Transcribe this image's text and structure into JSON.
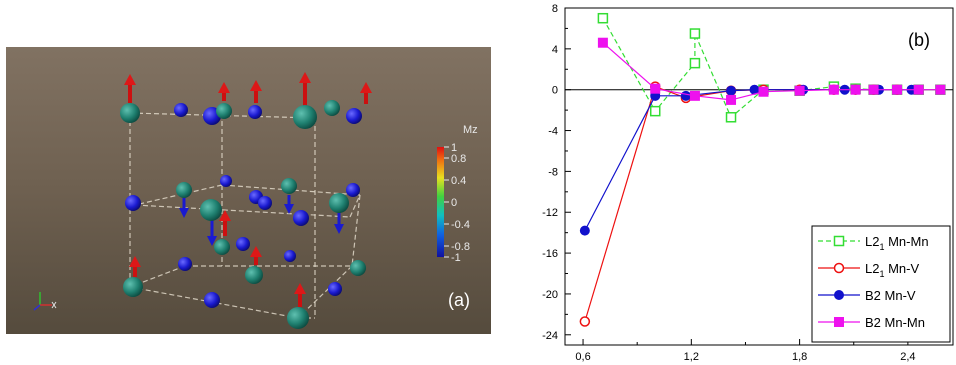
{
  "panel_a": {
    "label": "(a)",
    "colorbar": {
      "title": "Mz",
      "ticks": [
        "1",
        "0.8",
        "0.4",
        "0",
        "-0.4",
        "-0.8",
        "-1"
      ],
      "tick_values": [
        1,
        0.8,
        0.4,
        0,
        -0.4,
        -0.8,
        -1
      ]
    },
    "colors": {
      "background_top": "#7f7060",
      "background_bottom": "#5a5040",
      "mn_atom": "#1f8070",
      "v_atom": "#1a1ad0",
      "arrow_up": "#cc1010",
      "arrow_down": "#1a1ad0"
    }
  },
  "chart_data": {
    "type": "line",
    "panel_label": "(b)",
    "title": "",
    "xlabel": "",
    "ylabel": "",
    "xlim": [
      0.5,
      2.65
    ],
    "ylim": [
      -25,
      8
    ],
    "xticks": [
      0.6,
      1.2,
      1.8,
      2.4
    ],
    "xtick_labels": [
      "0,6",
      "1,2",
      "1,8",
      "2,4"
    ],
    "yticks": [
      8,
      4,
      0,
      -4,
      -8,
      -12,
      -16,
      -20,
      -24
    ],
    "ytick_labels": [
      "8",
      "4",
      "0",
      "-4",
      "-8",
      "-12",
      "-16",
      "-20",
      "-24"
    ],
    "zero_line": true,
    "grid": false,
    "legend_position": "bottom-right",
    "series": [
      {
        "name": "L2",
        "name_sub": "1",
        "name_suffix": " Mn-Mn",
        "color": "#33dd33",
        "line_style": "dashed",
        "marker": "square-open",
        "x": [
          0.71,
          1.0,
          1.22,
          1.22,
          1.42,
          1.6,
          1.8,
          1.99,
          2.11,
          2.21,
          2.34,
          2.46,
          2.58
        ],
        "y": [
          7.0,
          -2.1,
          2.6,
          5.5,
          -2.7,
          0.0,
          -0.1,
          0.3,
          0.1,
          0.0,
          0.0,
          0.0,
          0.0
        ]
      },
      {
        "name": "L2",
        "name_sub": "1",
        "name_suffix": " Mn-V",
        "color": "#ee1111",
        "line_style": "solid",
        "marker": "circle-open",
        "x": [
          0.61,
          1.0,
          1.17,
          1.42,
          1.6,
          1.8,
          1.99,
          2.11,
          2.21,
          2.34
        ],
        "y": [
          -22.7,
          0.3,
          -0.8,
          -0.1,
          0.0,
          0.0,
          0.0,
          0.0,
          0.0,
          0.0
        ]
      },
      {
        "name": "B2 Mn-V",
        "color": "#1111cc",
        "line_style": "solid",
        "marker": "circle-filled",
        "x": [
          0.61,
          1.0,
          1.17,
          1.42,
          1.55,
          1.82,
          2.05,
          2.24,
          2.42
        ],
        "y": [
          -13.8,
          -0.6,
          -0.6,
          -0.1,
          0.0,
          0.0,
          0.0,
          0.0,
          0.0
        ]
      },
      {
        "name": "B2 Mn-Mn",
        "color": "#ee11ee",
        "line_style": "solid",
        "marker": "square-filled",
        "x": [
          0.71,
          1.0,
          1.22,
          1.42,
          1.6,
          1.8,
          1.99,
          2.11,
          2.21,
          2.34,
          2.46,
          2.58
        ],
        "y": [
          4.6,
          0.1,
          -0.6,
          -1.0,
          -0.2,
          -0.1,
          0.0,
          0.0,
          0.0,
          0.0,
          0.0,
          0.0
        ]
      }
    ]
  }
}
